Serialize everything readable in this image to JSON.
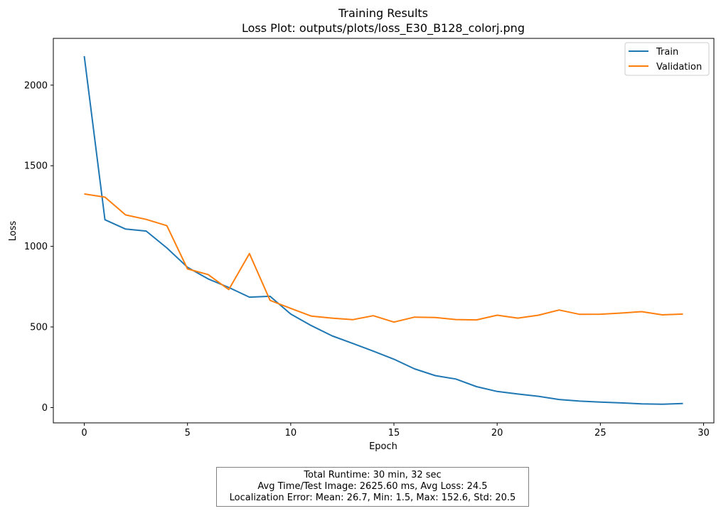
{
  "chart_data": {
    "type": "line",
    "title": "Training Results",
    "subtitle": "Loss Plot: outputs/plots/loss_E30_B128_colorj.png",
    "xlabel": "Epoch",
    "ylabel": "Loss",
    "xlim": [
      -1.5,
      30.5
    ],
    "ylim": [
      -95,
      2290
    ],
    "xticks": [
      0,
      5,
      10,
      15,
      20,
      25,
      30
    ],
    "yticks": [
      0,
      500,
      1000,
      1500,
      2000
    ],
    "grid": false,
    "legend_position": "top-right",
    "x": [
      0,
      1,
      2,
      3,
      4,
      5,
      6,
      7,
      8,
      9,
      10,
      11,
      12,
      13,
      14,
      15,
      16,
      17,
      18,
      19,
      20,
      21,
      22,
      23,
      24,
      25,
      26,
      27,
      28,
      29
    ],
    "series": [
      {
        "name": "Train",
        "color": "#1f77b4",
        "values": [
          2180,
          1165,
          1107,
          1095,
          990,
          870,
          798,
          745,
          685,
          690,
          580,
          508,
          445,
          398,
          350,
          300,
          240,
          198,
          177,
          130,
          100,
          84,
          70,
          50,
          40,
          34,
          29,
          23,
          21,
          25
        ]
      },
      {
        "name": "Validation",
        "color": "#ff7f0e",
        "values": [
          1325,
          1305,
          1195,
          1167,
          1128,
          860,
          825,
          732,
          955,
          665,
          615,
          567,
          555,
          545,
          570,
          530,
          561,
          559,
          546,
          544,
          573,
          555,
          573,
          605,
          578,
          579,
          586,
          595,
          575,
          580
        ]
      }
    ]
  },
  "stats": {
    "line1": "Total Runtime: 30 min, 32 sec",
    "line2": "Avg Time/Test Image: 2625.60 ms, Avg Loss: 24.5",
    "line3": "Localization Error: Mean: 26.7, Min: 1.5, Max: 152.6, Std: 20.5"
  }
}
